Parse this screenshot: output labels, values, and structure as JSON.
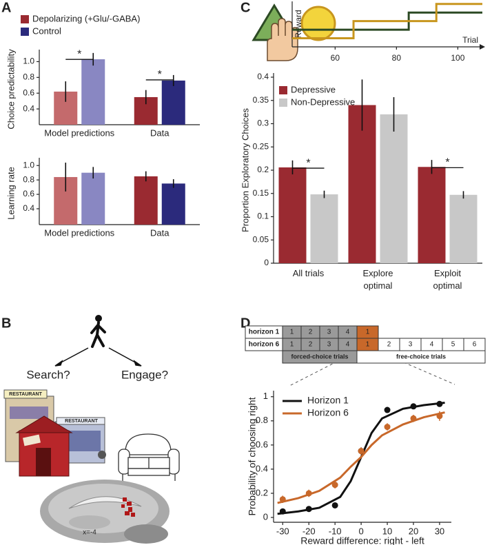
{
  "panels": [
    "A",
    "B",
    "C",
    "D"
  ],
  "panel_b": {
    "question_left": "Search?",
    "question_right": "Engage?",
    "signs": [
      "RESTAURANT",
      "RESTAURANT"
    ],
    "slice": "x=-4"
  },
  "horizon_table": {
    "rows": [
      {
        "label": "horizon 1",
        "forced": [
          1,
          2,
          3,
          4
        ],
        "free": [
          1
        ]
      },
      {
        "label": "horizon 6",
        "forced": [
          1,
          2,
          3,
          4
        ],
        "free": [
          1,
          2,
          3,
          4,
          5,
          6
        ]
      }
    ],
    "forced_label": "forced-choice trials",
    "free_label": "free-choice trials"
  },
  "chart_data": [
    {
      "type": "bar",
      "ylabel": "Choice predictability",
      "categories": [
        "Model predictions",
        "Data"
      ],
      "series": [
        {
          "name": "Depolarizing (+Glu/-GABA)",
          "colors": [
            "#c46a6c",
            "#9a2a31"
          ],
          "values": [
            0.62,
            0.55
          ],
          "errors": [
            0.13,
            0.09
          ]
        },
        {
          "name": "Control",
          "colors": [
            "#8987c2",
            "#2b2a7c"
          ],
          "values": [
            1.03,
            0.76
          ],
          "errors": [
            0.08,
            0.07
          ]
        }
      ],
      "ylim": [
        0.2,
        1.1
      ],
      "yticks": [
        0.4,
        0.6,
        0.8,
        {
          "value": 1,
          "label": "1.0"
        }
      ],
      "significance": [
        "*",
        "*"
      ]
    },
    {
      "type": "bar",
      "ylabel": "Learning rate",
      "categories": [
        "Model predictions",
        "Data"
      ],
      "series": [
        {
          "colors": [
            "#c46a6c",
            "#9a2a31"
          ],
          "values": [
            0.84,
            0.85
          ],
          "errors": [
            0.2,
            0.07
          ]
        },
        {
          "colors": [
            "#8987c2",
            "#2b2a7c"
          ],
          "values": [
            0.9,
            0.75
          ],
          "errors": [
            0.08,
            0.06
          ]
        }
      ],
      "ylim": [
        0.18,
        1.05
      ],
      "yticks": [
        0.4,
        0.6,
        0.8,
        {
          "value": 1,
          "label": "1.0"
        }
      ]
    },
    {
      "type": "step",
      "xlabel": "Trial",
      "ylabel": "Reward",
      "xlim": [
        46,
        108
      ],
      "xticks": [
        60,
        80,
        100
      ],
      "ylim": [
        0,
        5.3
      ],
      "series": [
        {
          "color": "#2c4a24",
          "x": [
            46,
            84,
            84,
            108
          ],
          "values": [
            2,
            2,
            4,
            4
          ]
        },
        {
          "color": "#c8961e",
          "x": [
            46,
            66,
            66,
            93,
            93,
            108
          ],
          "values": [
            1,
            1,
            3,
            3,
            5,
            5
          ]
        }
      ]
    },
    {
      "type": "bar",
      "ylabel": "Proportion Exploratory Choices",
      "categories": [
        [
          "All trials"
        ],
        [
          "Explore",
          "optimal"
        ],
        [
          "Exploit",
          "optimal"
        ]
      ],
      "series": [
        {
          "name": "Depressive",
          "colors": [
            "#9a2a31",
            "#9a2a31",
            "#9a2a31"
          ],
          "values": [
            0.206,
            0.34,
            0.207
          ],
          "errors": [
            0.015,
            0.055,
            0.015
          ]
        },
        {
          "name": "Non-Depressive",
          "colors": [
            "#c8c8c8",
            "#c8c8c8",
            "#c8c8c8"
          ],
          "values": [
            0.148,
            0.32,
            0.147
          ],
          "errors": [
            0.008,
            0.037,
            0.008
          ]
        }
      ],
      "ylim": [
        0,
        0.4
      ],
      "yticks": [
        0,
        0.05,
        0.1,
        0.15,
        0.2,
        0.25,
        0.3,
        0.35,
        0.4
      ],
      "significance": [
        "*",
        null,
        "*"
      ]
    },
    {
      "type": "scatter",
      "xlabel": "Reward difference: right - left",
      "ylabel": "Probability of choosing right",
      "xlim": [
        -33.5,
        34.5
      ],
      "xticks": [
        -30,
        -20,
        -10,
        0,
        10,
        20,
        30
      ],
      "ylim": [
        -0.04,
        1.05
      ],
      "yticks": [
        0,
        0.2,
        0.4,
        0.6,
        0.8,
        1
      ],
      "series": [
        {
          "name": "Horizon 1",
          "color": "#111111",
          "x": [
            -30,
            -20,
            -10,
            0,
            10,
            20,
            30
          ],
          "values": [
            0.05,
            0.07,
            0.1,
            0.55,
            0.89,
            0.92,
            0.94
          ],
          "errors": [
            0.015,
            0.015,
            0.02,
            0.03,
            0.025,
            0.02,
            0.02
          ],
          "fit": {
            "x": [
              -32,
              -24,
              -16,
              -8,
              -4,
              0,
              4,
              8,
              16,
              24,
              32
            ],
            "values": [
              0.03,
              0.05,
              0.08,
              0.17,
              0.3,
              0.5,
              0.7,
              0.82,
              0.9,
              0.93,
              0.95
            ]
          }
        },
        {
          "name": "Horizon 6",
          "color": "#c8682a",
          "x": [
            -30,
            -20,
            -10,
            0,
            10,
            20,
            30
          ],
          "values": [
            0.15,
            0.2,
            0.27,
            0.55,
            0.75,
            0.82,
            0.84
          ],
          "errors": [
            0.03,
            0.03,
            0.03,
            0.03,
            0.03,
            0.03,
            0.04
          ],
          "fit": {
            "x": [
              -32,
              -24,
              -16,
              -8,
              -4,
              0,
              4,
              8,
              16,
              24,
              32
            ],
            "values": [
              0.12,
              0.16,
              0.22,
              0.33,
              0.42,
              0.5,
              0.6,
              0.68,
              0.77,
              0.83,
              0.87
            ]
          }
        }
      ]
    }
  ]
}
